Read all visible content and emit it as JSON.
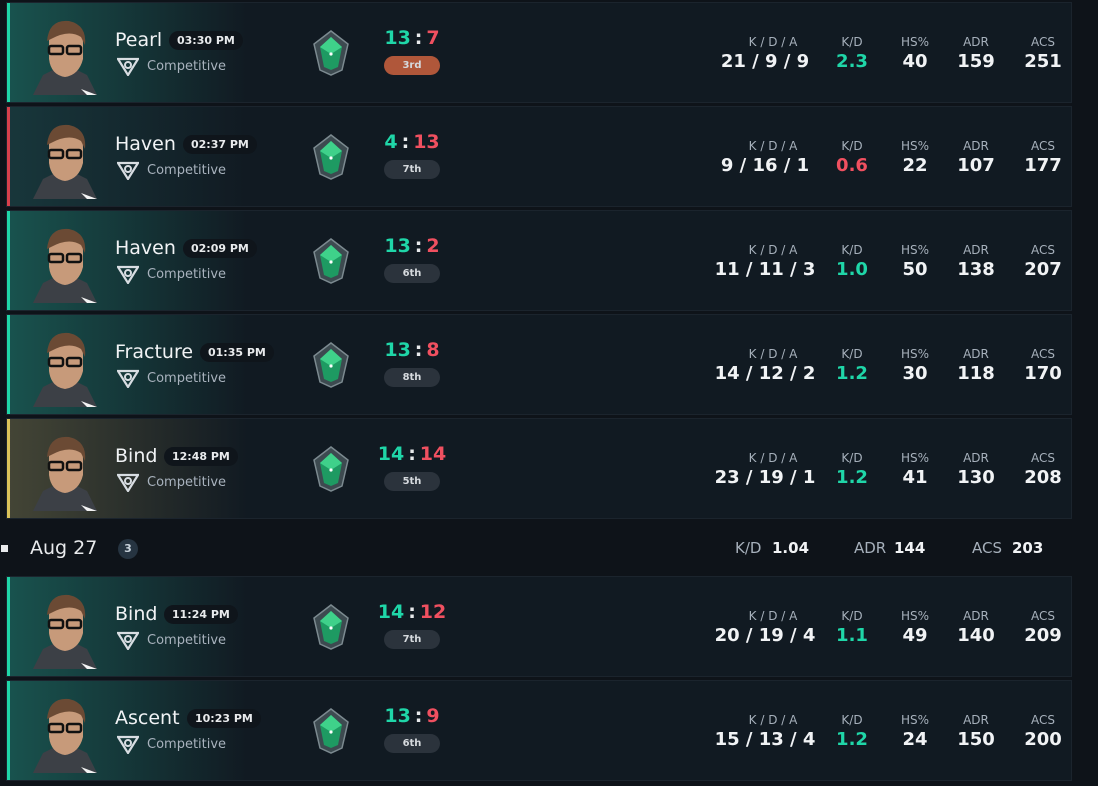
{
  "stat_labels": [
    "K / D / A",
    "K/D",
    "HS%",
    "ADR",
    "ACS"
  ],
  "score_separator": ":",
  "sections": [
    {
      "matches": [
        {
          "map": "Pearl",
          "time": "03:30 PM",
          "mode": "Competitive",
          "score": [
            13,
            7
          ],
          "placement": "3rd",
          "badge_color": "#b0573a",
          "kda": "21 / 9 / 9",
          "kd": "2.3",
          "hs": 40,
          "adr": 159,
          "acs": 251
        },
        {
          "map": "Haven",
          "time": "02:37 PM",
          "mode": "Competitive",
          "score": [
            4,
            13
          ],
          "placement": "7th",
          "badge_color": "#2b333c",
          "kda": "9 / 16 / 1",
          "kd": "0.6",
          "hs": 22,
          "adr": 107,
          "acs": 177
        },
        {
          "map": "Haven",
          "time": "02:09 PM",
          "mode": "Competitive",
          "score": [
            13,
            2
          ],
          "placement": "6th",
          "badge_color": "#2b333c",
          "kda": "11 / 11 / 3",
          "kd": "1.0",
          "hs": 50,
          "adr": 138,
          "acs": 207
        },
        {
          "map": "Fracture",
          "time": "01:35 PM",
          "mode": "Competitive",
          "score": [
            13,
            8
          ],
          "placement": "8th",
          "badge_color": "#2b333c",
          "kda": "14 / 12 / 2",
          "kd": "1.2",
          "hs": 30,
          "adr": 118,
          "acs": 170
        },
        {
          "map": "Bind",
          "time": "12:48 PM",
          "mode": "Competitive",
          "score": [
            14,
            14
          ],
          "placement": "5th",
          "badge_color": "#2b333c",
          "kda": "23 / 19 / 1",
          "kd": "1.2",
          "hs": 41,
          "adr": 130,
          "acs": 208
        }
      ]
    },
    {
      "header": {
        "date": "Aug 27",
        "count": 3,
        "kd_label": "K/D",
        "kd": "1.04",
        "adr_label": "ADR",
        "adr": 144,
        "acs_label": "ACS",
        "acs": 203
      },
      "matches": [
        {
          "map": "Bind",
          "time": "11:24 PM",
          "mode": "Competitive",
          "score": [
            14,
            12
          ],
          "placement": "7th",
          "badge_color": "#2b333c",
          "kda": "20 / 19 / 4",
          "kd": "1.1",
          "hs": 49,
          "adr": 140,
          "acs": 209
        },
        {
          "map": "Ascent",
          "time": "10:23 PM",
          "mode": "Competitive",
          "score": [
            13,
            9
          ],
          "placement": "6th",
          "badge_color": "#2b333c",
          "kda": "15 / 13 / 4",
          "kd": "1.2",
          "hs": 24,
          "adr": 150,
          "acs": 200
        }
      ]
    }
  ]
}
